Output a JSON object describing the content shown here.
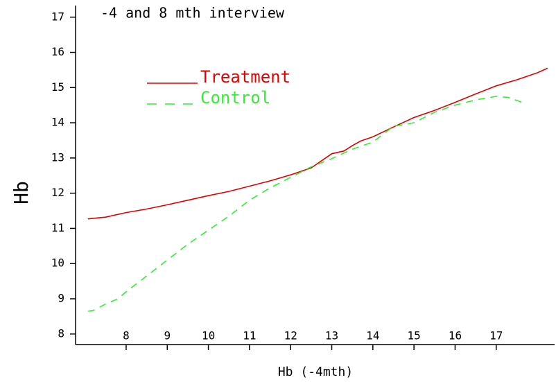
{
  "chart_data": {
    "type": "line",
    "title": "-4 and 8 mth interview",
    "x_label": "Hb (-4mth)",
    "y_label": "Hb",
    "xlim": [
      6.77,
      18.42
    ],
    "ylim": [
      7.7,
      17.33
    ],
    "xticks": [
      8,
      9,
      10,
      11,
      12,
      13,
      14,
      15,
      16,
      17
    ],
    "yticks": [
      8,
      9,
      10,
      11,
      12,
      13,
      14,
      15,
      16,
      17
    ],
    "series": [
      {
        "name": "Treatment",
        "color": "#e00000",
        "dash": false,
        "x": [
          7.07,
          7.5,
          8,
          8.5,
          9,
          9.5,
          10,
          10.5,
          11,
          11.5,
          12,
          12.5,
          13,
          13.3,
          13.5,
          13.7,
          14,
          14.5,
          15,
          15.5,
          16,
          16.5,
          17,
          17.5,
          18,
          18.25
        ],
        "values": [
          11.27,
          11.32,
          11.45,
          11.55,
          11.67,
          11.8,
          11.93,
          12.05,
          12.2,
          12.35,
          12.52,
          12.72,
          13.12,
          13.2,
          13.35,
          13.48,
          13.6,
          13.88,
          14.15,
          14.35,
          14.58,
          14.82,
          15.05,
          15.22,
          15.42,
          15.55
        ]
      },
      {
        "name": "Control",
        "color": "#33ee33",
        "dash": true,
        "x": [
          7.07,
          7.2,
          7.5,
          7.8,
          8,
          8.5,
          9,
          9.5,
          10,
          10.5,
          11,
          11.5,
          12,
          12.5,
          13,
          13.5,
          14,
          14.5,
          15,
          15.5,
          16,
          16.5,
          17,
          17.3,
          17.7
        ],
        "values": [
          8.65,
          8.67,
          8.85,
          9.0,
          9.2,
          9.65,
          10.1,
          10.55,
          10.95,
          11.35,
          11.8,
          12.15,
          12.45,
          12.75,
          12.98,
          13.25,
          13.45,
          13.9,
          14.0,
          14.3,
          14.5,
          14.65,
          14.75,
          14.72,
          14.55
        ]
      }
    ]
  }
}
